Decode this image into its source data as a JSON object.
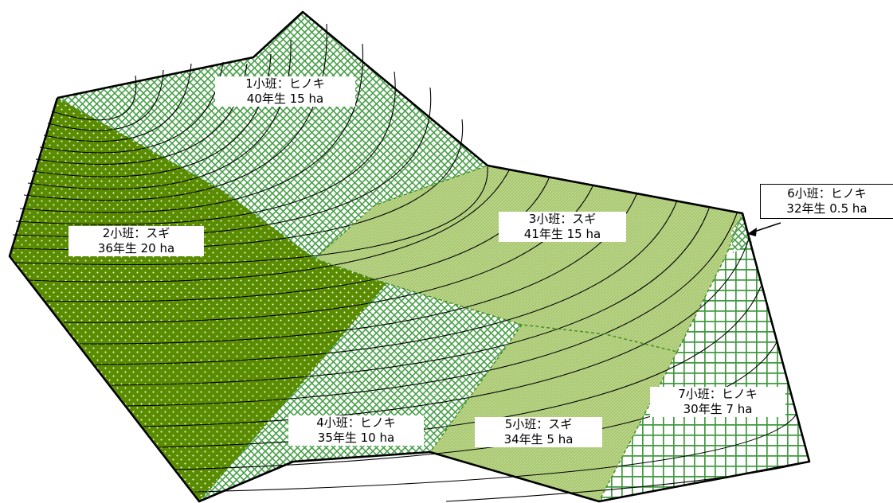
{
  "stands": [
    {
      "id": 1,
      "line1": "1小班：ヒノキ",
      "line2": "40年生  15 ha",
      "species": "ヒノキ",
      "age": 40,
      "area_ha": 15
    },
    {
      "id": 2,
      "line1": "2小班：スギ",
      "line2": "36年生  20 ha",
      "species": "スギ",
      "age": 36,
      "area_ha": 20
    },
    {
      "id": 3,
      "line1": "3小班：スギ",
      "line2": "41年生  15 ha",
      "species": "スギ",
      "age": 41,
      "area_ha": 15
    },
    {
      "id": 4,
      "line1": "4小班：ヒノキ",
      "line2": "35年生  10 ha",
      "species": "ヒノキ",
      "age": 35,
      "area_ha": 10
    },
    {
      "id": 5,
      "line1": "5小班：スギ",
      "line2": "34年生  5 ha",
      "species": "スギ",
      "age": 34,
      "area_ha": 5
    },
    {
      "id": 6,
      "line1": "6小班：ヒノキ",
      "line2": "32年生  0.5 ha",
      "species": "ヒノキ",
      "age": 32,
      "area_ha": 0.5
    },
    {
      "id": 7,
      "line1": "7小班：ヒノキ",
      "line2": "30年生  7 ha",
      "species": "ヒノキ",
      "age": 30,
      "area_ha": 7
    }
  ],
  "colors": {
    "dark_green": "#5a8c00",
    "light_green": "#a9c86f",
    "pattern_green": "#3f9a3f",
    "contour": "#000000"
  }
}
